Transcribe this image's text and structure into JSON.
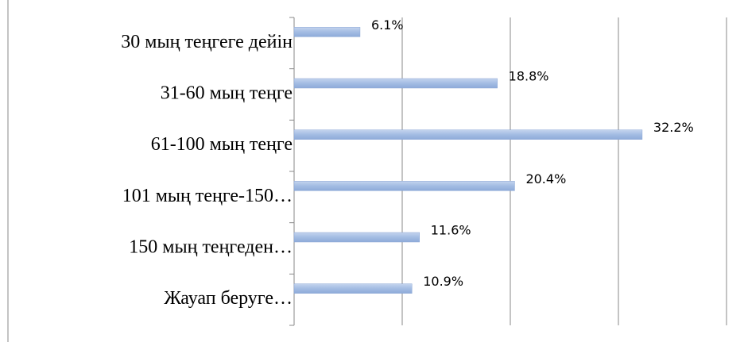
{
  "chart_data": {
    "type": "bar",
    "orientation": "horizontal",
    "categories": [
      "30 мың теңгеге дейін",
      "31-60 мың теңге",
      "61-100 мың теңге",
      "101 мың теңге-150…",
      "150 мың теңгеден…",
      "Жауап беруге…"
    ],
    "values": [
      6.1,
      18.8,
      32.2,
      20.4,
      11.6,
      10.9
    ],
    "value_labels": [
      "6.1%",
      "18.8%",
      "32.2%",
      "20.4%",
      "11.6%",
      "10.9%"
    ],
    "color": "#a3bce3",
    "xlim": [
      0,
      40
    ],
    "xticks": [
      0,
      10,
      20,
      30,
      40
    ],
    "xtick_labels": false,
    "grid": true
  }
}
